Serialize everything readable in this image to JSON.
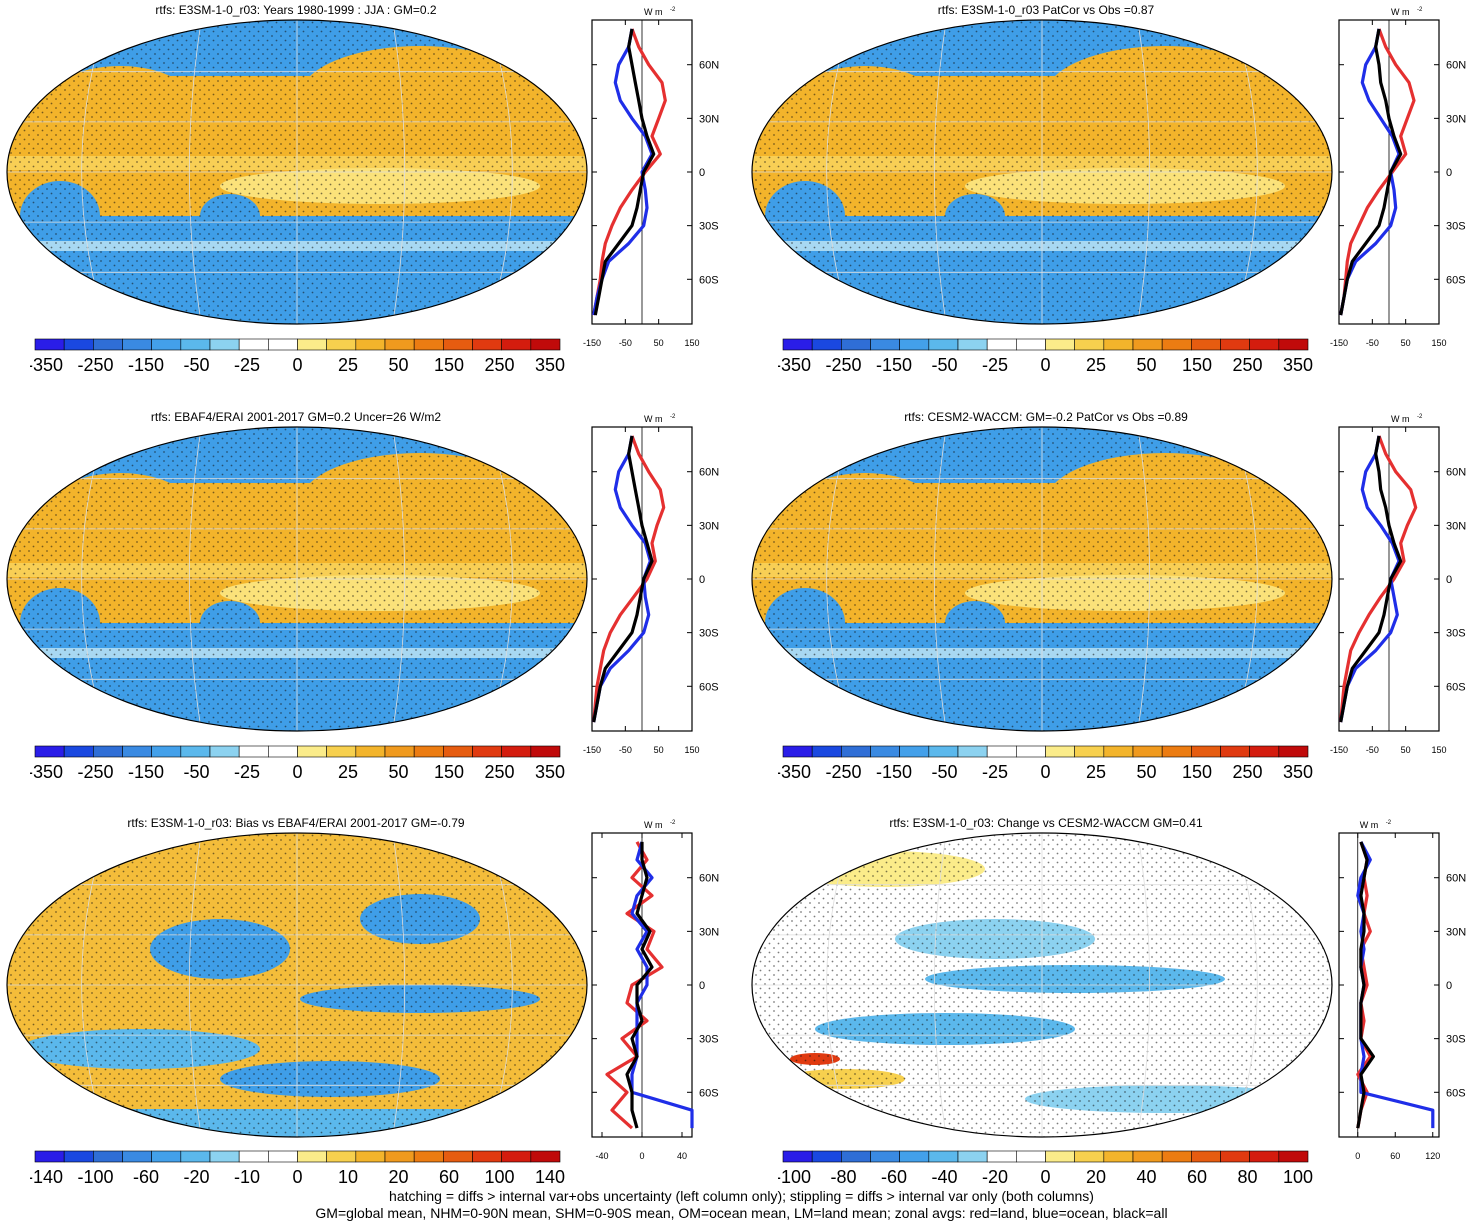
{
  "colors": {
    "land": "#e53030",
    "ocean": "#1f2ee8",
    "all": "#000000",
    "map_ocean_fill": "#3f9ee8",
    "map_warm_fill": "#f3b42b"
  },
  "units_label": "W m",
  "units_sup": "-2",
  "lat_ticks": [
    "60N",
    "30N",
    "0",
    "30S",
    "60S"
  ],
  "panels": [
    {
      "id": "p1",
      "title": "rtfs: E3SM-1-0_r03: Years 1980-1999 : JJA : GM=0.2",
      "colorbar_labels": [
        "-350",
        "-250",
        "-150",
        "-50",
        "-25",
        "0",
        "25",
        "50",
        "150",
        "250",
        "350"
      ],
      "zonal_xticks": [
        "-150",
        "-50",
        "50",
        "150"
      ]
    },
    {
      "id": "p2",
      "title": "rtfs: E3SM-1-0_r03 PatCor vs Obs =0.87",
      "colorbar_labels": [
        "-350",
        "-250",
        "-150",
        "-50",
        "-25",
        "0",
        "25",
        "50",
        "150",
        "250",
        "350"
      ],
      "zonal_xticks": [
        "-150",
        "-50",
        "50",
        "150"
      ]
    },
    {
      "id": "p3",
      "title": "rtfs: EBAF4/ERAI 2001-2017 GM=0.2 Uncer=26 W/m2",
      "colorbar_labels": [
        "-350",
        "-250",
        "-150",
        "-50",
        "-25",
        "0",
        "25",
        "50",
        "150",
        "250",
        "350"
      ],
      "zonal_xticks": [
        "-150",
        "-50",
        "50",
        "150"
      ]
    },
    {
      "id": "p4",
      "title": "rtfs: CESM2-WACCM: GM=-0.2 PatCor vs Obs =0.89",
      "colorbar_labels": [
        "-350",
        "-250",
        "-150",
        "-50",
        "-25",
        "0",
        "25",
        "50",
        "150",
        "250",
        "350"
      ],
      "zonal_xticks": [
        "-150",
        "-50",
        "50",
        "150"
      ]
    },
    {
      "id": "p5",
      "title": "rtfs: E3SM-1-0_r03: Bias vs EBAF4/ERAI 2001-2017 GM=-0.79",
      "colorbar_labels": [
        "-140",
        "-100",
        "-60",
        "-20",
        "-10",
        "0",
        "10",
        "20",
        "60",
        "100",
        "140"
      ],
      "zonal_xticks": [
        "-40",
        "0",
        "40"
      ]
    },
    {
      "id": "p6",
      "title": "rtfs: E3SM-1-0_r03: Change vs CESM2-WACCM GM=0.41",
      "colorbar_labels": [
        "-100",
        "-80",
        "-60",
        "-40",
        "-20",
        "0",
        "20",
        "40",
        "60",
        "80",
        "100"
      ],
      "zonal_xticks": [
        "0",
        "60",
        "120"
      ]
    }
  ],
  "footer": {
    "line1": "hatching = diffs > internal var+obs uncertainty (left column only); stippling = diffs > internal var only (both columns)",
    "line2": "GM=global mean, NHM=0-90N mean, SHM=0-90S mean, OM=ocean mean, LM=land mean; zonal avgs: red=land, blue=ocean, black=all"
  },
  "chart_data": [
    {
      "type": "heatmap",
      "title": "rtfs: E3SM-1-0_r03: Years 1980-1999 : JJA : GM=0.2",
      "colorbar_levels": [
        -350,
        -250,
        -150,
        -50,
        -25,
        0,
        25,
        50,
        150,
        250,
        350
      ],
      "zonal_mean": {
        "units": "W m-2",
        "xlim": [
          -150,
          150
        ],
        "lat": [
          80,
          70,
          60,
          50,
          40,
          30,
          20,
          10,
          0,
          -10,
          -20,
          -30,
          -40,
          -50,
          -60,
          -70,
          -80
        ],
        "series": [
          {
            "values": [
              -30,
              -10,
              20,
              60,
              70,
              50,
              30,
              55,
              10,
              -30,
              -65,
              -90,
              -110,
              -120,
              -125,
              -135,
              -145
            ]
          },
          {
            "values": [
              -30,
              -40,
              -70,
              -80,
              -65,
              -30,
              10,
              30,
              0,
              10,
              15,
              5,
              -40,
              -100,
              -120,
              -135,
              -145
            ]
          },
          {
            "values": [
              -30,
              -40,
              -30,
              -20,
              -10,
              0,
              15,
              35,
              5,
              -5,
              -15,
              -30,
              -70,
              -110,
              -120,
              -130,
              -140
            ]
          }
        ]
      }
    },
    {
      "type": "heatmap",
      "title": "rtfs: E3SM-1-0_r03 PatCor vs Obs =0.87",
      "colorbar_levels": [
        -350,
        -250,
        -150,
        -50,
        -25,
        0,
        25,
        50,
        150,
        250,
        350
      ],
      "zonal_mean": {
        "units": "W m-2",
        "xlim": [
          -150,
          150
        ],
        "lat": [
          80,
          70,
          60,
          50,
          40,
          30,
          20,
          10,
          0,
          -10,
          -20,
          -30,
          -40,
          -50,
          -60,
          -70,
          -80
        ],
        "series": [
          {
            "values": [
              -30,
              -10,
              20,
              60,
              75,
              55,
              35,
              50,
              10,
              -30,
              -65,
              -90,
              -115,
              -125,
              -130,
              -135,
              -145
            ]
          },
          {
            "values": [
              -30,
              -40,
              -70,
              -80,
              -60,
              -25,
              10,
              30,
              5,
              15,
              20,
              5,
              -40,
              -100,
              -125,
              -135,
              -145
            ]
          },
          {
            "values": [
              -30,
              -40,
              -30,
              -25,
              -10,
              0,
              15,
              35,
              5,
              -5,
              -15,
              -30,
              -70,
              -110,
              -125,
              -135,
              -145
            ]
          }
        ]
      }
    },
    {
      "type": "heatmap",
      "title": "rtfs: EBAF4/ERAI 2001-2017 GM=0.2 Uncer=26 W/m2",
      "colorbar_levels": [
        -350,
        -250,
        -150,
        -50,
        -25,
        0,
        25,
        50,
        150,
        250,
        350
      ],
      "zonal_mean": {
        "units": "W m-2",
        "xlim": [
          -150,
          150
        ],
        "lat": [
          80,
          70,
          60,
          50,
          40,
          30,
          20,
          10,
          0,
          -10,
          -20,
          -30,
          -40,
          -50,
          -60,
          -70,
          -80
        ],
        "series": [
          {
            "values": [
              -30,
              -10,
              20,
              55,
              65,
              45,
              30,
              40,
              15,
              -25,
              -65,
              -95,
              -115,
              -125,
              -135,
              -140,
              -145
            ]
          },
          {
            "values": [
              -30,
              -40,
              -70,
              -80,
              -65,
              -30,
              10,
              25,
              5,
              10,
              20,
              5,
              -40,
              -95,
              -125,
              -135,
              -145
            ]
          },
          {
            "values": [
              -30,
              -40,
              -30,
              -20,
              -10,
              0,
              15,
              30,
              5,
              -5,
              -15,
              -30,
              -70,
              -110,
              -125,
              -135,
              -145
            ]
          }
        ]
      }
    },
    {
      "type": "heatmap",
      "title": "rtfs: CESM2-WACCM: GM=-0.2 PatCor vs Obs =0.89",
      "colorbar_levels": [
        -350,
        -250,
        -150,
        -50,
        -25,
        0,
        25,
        50,
        150,
        250,
        350
      ],
      "zonal_mean": {
        "units": "W m-2",
        "xlim": [
          -150,
          150
        ],
        "lat": [
          80,
          70,
          60,
          50,
          40,
          30,
          20,
          10,
          0,
          -10,
          -20,
          -30,
          -40,
          -50,
          -60,
          -70,
          -80
        ],
        "series": [
          {
            "values": [
              -30,
              -10,
              20,
              65,
              80,
              55,
              35,
              45,
              15,
              -25,
              -60,
              -90,
              -115,
              -125,
              -135,
              -140,
              -145
            ]
          },
          {
            "values": [
              -30,
              -40,
              -70,
              -80,
              -65,
              -25,
              10,
              30,
              5,
              15,
              25,
              5,
              -40,
              -100,
              -125,
              -135,
              -145
            ]
          },
          {
            "values": [
              -30,
              -40,
              -30,
              -25,
              -10,
              0,
              15,
              35,
              5,
              -5,
              -15,
              -30,
              -70,
              -110,
              -125,
              -135,
              -145
            ]
          }
        ]
      }
    },
    {
      "type": "heatmap",
      "title": "rtfs: E3SM-1-0_r03: Bias vs EBAF4/ERAI 2001-2017 GM=-0.79",
      "colorbar_levels": [
        -140,
        -100,
        -60,
        -20,
        -10,
        0,
        10,
        20,
        60,
        100,
        140
      ],
      "zonal_mean": {
        "units": "W m-2",
        "xlim": [
          -50,
          50
        ],
        "lat": [
          80,
          70,
          60,
          50,
          40,
          30,
          20,
          10,
          0,
          -10,
          -20,
          -30,
          -40,
          -50,
          -60,
          -70,
          -80
        ],
        "series": [
          {
            "values": [
              -5,
              5,
              -10,
              10,
              -15,
              12,
              5,
              20,
              -10,
              -15,
              5,
              -20,
              -5,
              -35,
              -15,
              -30,
              -10
            ]
          },
          {
            "values": [
              0,
              -5,
              10,
              -5,
              -10,
              5,
              -5,
              5,
              5,
              -5,
              -5,
              -5,
              -5,
              -10,
              -10,
              50,
              50
            ]
          },
          {
            "values": [
              0,
              0,
              5,
              0,
              -5,
              8,
              0,
              10,
              -5,
              -5,
              0,
              -10,
              -5,
              -15,
              -10,
              -10,
              -5
            ]
          }
        ]
      }
    },
    {
      "type": "heatmap",
      "title": "rtfs: E3SM-1-0_r03: Change vs CESM2-WACCM GM=0.41",
      "colorbar_levels": [
        -100,
        -80,
        -60,
        -40,
        -20,
        0,
        20,
        40,
        60,
        80,
        100
      ],
      "zonal_mean": {
        "units": "W m-2",
        "xlim": [
          -30,
          130
        ],
        "lat": [
          80,
          70,
          60,
          50,
          40,
          30,
          20,
          10,
          0,
          -10,
          -20,
          -30,
          -40,
          -50,
          -60,
          -70,
          -80
        ],
        "series": [
          {
            "values": [
              5,
              15,
              10,
              15,
              10,
              20,
              5,
              10,
              15,
              5,
              10,
              5,
              20,
              0,
              15,
              5,
              0
            ]
          },
          {
            "values": [
              5,
              20,
              5,
              0,
              10,
              5,
              10,
              5,
              10,
              5,
              5,
              5,
              10,
              5,
              5,
              120,
              120
            ]
          },
          {
            "values": [
              5,
              15,
              10,
              5,
              10,
              10,
              5,
              5,
              10,
              5,
              5,
              5,
              25,
              5,
              10,
              5,
              0
            ]
          }
        ]
      }
    }
  ]
}
